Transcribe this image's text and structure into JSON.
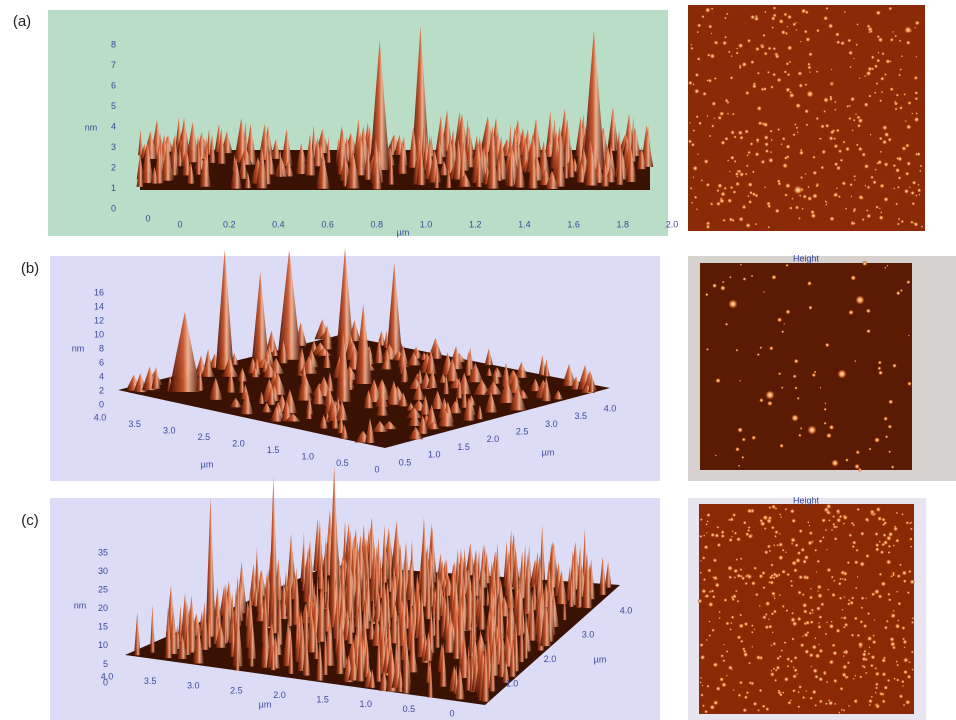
{
  "panels": [
    {
      "label": "(a)",
      "z_unit": "nm",
      "z_ticks": [
        "0",
        "1",
        "2",
        "3",
        "4",
        "5",
        "6",
        "7",
        "8"
      ],
      "corner_tick": "0",
      "x_unit": "µm",
      "x_ticks": [
        "0",
        "0.2",
        "0.4",
        "0.6",
        "0.8",
        "1.0",
        "1.2",
        "1.4",
        "1.6",
        "1.8",
        "2.0"
      ]
    },
    {
      "label": "(b)",
      "z_unit": "nm",
      "z_ticks": [
        "0",
        "2",
        "4",
        "6",
        "8",
        "10",
        "12",
        "14",
        "16"
      ],
      "left_unit": "µm",
      "left_ticks": [
        "4.0",
        "3.5",
        "3.0",
        "2.5",
        "2.0",
        "1.5",
        "1.0",
        "0.5",
        "0"
      ],
      "right_unit": "µm",
      "right_ticks": [
        "0.5",
        "1.0",
        "1.5",
        "2.0",
        "2.5",
        "3.0",
        "3.5",
        "4.0"
      ],
      "image_title": "Height"
    },
    {
      "label": "(c)",
      "z_unit": "nm",
      "z_ticks": [
        "0",
        "5",
        "10",
        "15",
        "20",
        "25",
        "30",
        "35"
      ],
      "left_unit": "µm",
      "left_ticks": [
        "4.0",
        "3.5",
        "3.0",
        "2.5",
        "2.0",
        "1.5",
        "1.0",
        "0.5",
        "0"
      ],
      "right_unit": "µm",
      "right_ticks": [
        "1.0",
        "2.0",
        "3.0",
        "4.0"
      ],
      "image_title": "Height"
    }
  ]
}
